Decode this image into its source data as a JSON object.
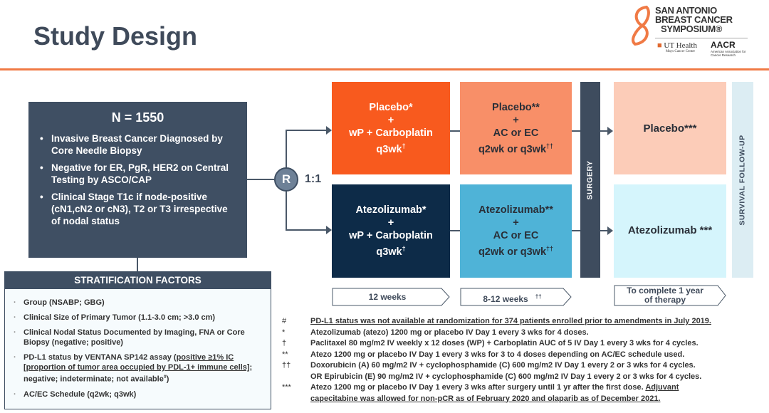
{
  "title": "Study Design",
  "logo": {
    "line1": "SAN ANTONIO",
    "line2": "BREAST CANCER",
    "line3": "SYMPOSIUM®",
    "ut": "UT Health",
    "ut_sub": "San Antonio",
    "ut_sub2": "Mays Cancer Center",
    "aacr": "AACR",
    "aacr_sub": "American Association for Cancer Research"
  },
  "colors": {
    "accent": "#f07a45",
    "navy": "#3f4f63"
  },
  "enrollment": {
    "n": "N = 1550",
    "criteria": [
      "Invasive Breast Cancer Diagnosed by Core Needle Biopsy",
      "Negative for ER, PgR, HER2 on Central Testing by ASCO/CAP",
      "Clinical Stage T1c if node-positive (cN1,cN2 or cN3), T2 or T3 irrespective of nodal status"
    ]
  },
  "stratification": {
    "header": "STRATIFICATION FACTORS",
    "items": [
      "Group (NSABP; GBG)",
      "Clinical Size of Primary Tumor (1.1-3.0 cm; >3.0 cm)",
      "Clinical Nodal Status Documented by Imaging, FNA or Core Biopsy (negative; positive)"
    ],
    "pdl1_a": "PD-L1 status by VENTANA SP142 assay (",
    "pdl1_u": "positive ≥1% IC [proportion of tumor area occupied by PDL-1+ immune cells]",
    "pdl1_b": "; negative; indeterminate; not available",
    "pdl1_sup": "#",
    "pdl1_c": ")",
    "last": "AC/EC Schedule (q2wk; q3wk)"
  },
  "randomization": {
    "label": "R",
    "ratio": "1:1"
  },
  "arms": {
    "placebo": {
      "neo1": [
        "Placebo*",
        "+",
        "wP + Carboplatin"
      ],
      "neo1_sched": "q3wk",
      "neo1_sup": "†",
      "neo2": [
        "Placebo**",
        "+",
        "AC or EC"
      ],
      "neo2_sched": "q2wk or q3wk",
      "neo2_sup": "††",
      "adj": "Placebo***"
    },
    "atezo": {
      "neo1": [
        "Atezolizumab*",
        "+",
        "wP + Carboplatin"
      ],
      "neo1_sched": "q3wk",
      "neo1_sup": "†",
      "neo2": [
        "Atezolizumab**",
        "+",
        "AC or EC"
      ],
      "neo2_sched": "q2wk or q3wk",
      "neo2_sup": "††",
      "adj": "Atezolizumab ***"
    }
  },
  "surgery": "SURGERY",
  "survival": "SURVIVAL FOLLOW-UP",
  "timeline": [
    {
      "label": "12 weeks",
      "sup": ""
    },
    {
      "label": "8-12 weeks",
      "sup": "††"
    },
    {
      "label": "To complete 1 year of therapy",
      "sup": ""
    }
  ],
  "footnotes": [
    {
      "sym": "#",
      "text": "PD-L1 status was not available at randomization for 374 patients enrolled prior to amendments in July 2019.",
      "ul": true
    },
    {
      "sym": "*",
      "text": "Atezolizumab (atezo) 1200 mg or placebo IV Day 1 every 3 wks for 4 doses."
    },
    {
      "sym": "†",
      "text": "Paclitaxel 80 mg/m2 IV weekly x 12 doses (WP) + Carboplatin AUC of 5 IV Day 1 every 3 wks for 4 cycles."
    },
    {
      "sym": "**",
      "text": "Atezo 1200 mg or placebo IV Day 1 every 3 wks for 3 to 4 doses depending on AC/EC schedule used."
    },
    {
      "sym": "††",
      "text": "Doxorubicin (A) 60 mg/m2 IV + cyclophosphamide (C) 600 mg/m2 IV Day 1 every 2 or 3 wks for 4 cycles."
    },
    {
      "sym": "",
      "text": "OR Epirubicin (E) 90 mg/m2 IV + cyclophosphamide (C) 600 mg/m2 IV Day 1 every 2 or 3 wks for 4 cycles."
    },
    {
      "sym": "***",
      "text": "Atezo 1200 mg or placebo IV Day 1 every 3 wks after surgery until 1 yr after the first dose. ",
      "ul_text": "Adjuvant capecitabine was allowed for non-pCR as of February 2020 and olaparib as of December 2021."
    }
  ]
}
